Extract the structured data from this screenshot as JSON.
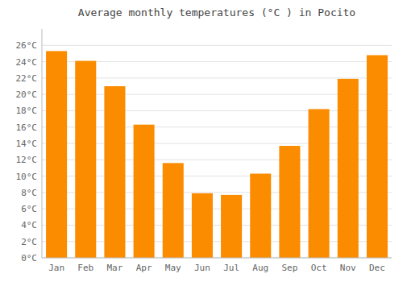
{
  "chart_data": {
    "type": "bar",
    "title": "Average monthly temperatures (°C ) in Pocito",
    "categories": [
      "Jan",
      "Feb",
      "Mar",
      "Apr",
      "May",
      "Jun",
      "Jul",
      "Aug",
      "Sep",
      "Oct",
      "Nov",
      "Dec"
    ],
    "values": [
      25.3,
      24.1,
      21.0,
      16.3,
      11.6,
      7.9,
      7.7,
      10.3,
      13.7,
      18.2,
      21.9,
      24.8
    ],
    "color": "#FB8C00",
    "ylim": [
      0,
      28
    ],
    "yticks": [
      {
        "value": 0,
        "label": "0°C"
      },
      {
        "value": 2,
        "label": "2°C"
      },
      {
        "value": 4,
        "label": "4°C"
      },
      {
        "value": 6,
        "label": "6°C"
      },
      {
        "value": 8,
        "label": "8°C"
      },
      {
        "value": 10,
        "label": "10°C"
      },
      {
        "value": 12,
        "label": "12°C"
      },
      {
        "value": 14,
        "label": "14°C"
      },
      {
        "value": 16,
        "label": "16°C"
      },
      {
        "value": 18,
        "label": "18°C"
      },
      {
        "value": 20,
        "label": "20°C"
      },
      {
        "value": 22,
        "label": "22°C"
      },
      {
        "value": 24,
        "label": "24°C"
      },
      {
        "value": 26,
        "label": "26°C"
      }
    ],
    "grid": true
  }
}
